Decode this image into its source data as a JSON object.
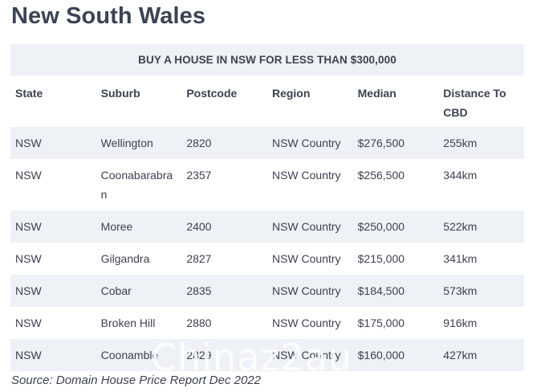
{
  "title": "New South Wales",
  "table": {
    "banner": "BUY A HOUSE IN NSW FOR LESS THAN $300,000",
    "columns": [
      "State",
      "Suburb",
      "Postcode",
      "Region",
      "Median",
      "Distance To CBD"
    ],
    "rows": [
      [
        "NSW",
        "Wellington",
        "2820",
        "NSW Country",
        "$276,500",
        "255km"
      ],
      [
        "NSW",
        "Coonabarabran",
        "2357",
        "NSW Country",
        "$256,500",
        "344km"
      ],
      [
        "NSW",
        "Moree",
        "2400",
        "NSW Country",
        "$250,000",
        "522km"
      ],
      [
        "NSW",
        "Gilgandra",
        "2827",
        "NSW Country",
        "$215,000",
        "341km"
      ],
      [
        "NSW",
        "Cobar",
        "2835",
        "NSW Country",
        "$184,500",
        "573km"
      ],
      [
        "NSW",
        "Broken Hill",
        "2880",
        "NSW Country",
        "$175,000",
        "916km"
      ],
      [
        "NSW",
        "Coonamble",
        "2829",
        "NSW Country",
        "$160,000",
        "427km"
      ]
    ]
  },
  "source": "Source: Domain House Price Report Dec 2022",
  "watermark": "Chinaz2au",
  "colors": {
    "title": "#3b4354",
    "text": "#3d4250",
    "stripe": "#eef1f5"
  }
}
